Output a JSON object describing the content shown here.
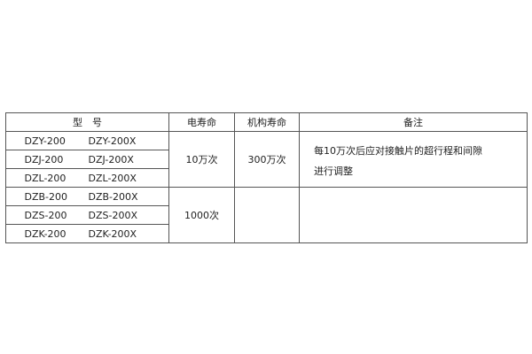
{
  "table": {
    "headers": [
      "型　号",
      "电寿命",
      "机构寿命",
      "备注"
    ],
    "rows": [
      {
        "model_a": "DZY-200",
        "model_b": "DZY-200X"
      },
      {
        "model_a": "DZJ-200",
        "model_b": "DZJ-200X"
      },
      {
        "model_a": "DZL-200",
        "model_b": "DZL-200X"
      },
      {
        "model_a": "DZB-200",
        "model_b": "DZB-200X"
      },
      {
        "model_a": "DZS-200",
        "model_b": "DZS-200X"
      },
      {
        "model_a": "DZK-200",
        "model_b": "DZK-200X"
      }
    ],
    "group1": {
      "electrical_life": "10万次",
      "mechanical_life": "300万次",
      "note_line1": "每10万次后应对接触片的超行程和间隙",
      "note_line2": "进行调整"
    },
    "group2": {
      "electrical_life": "1000次",
      "mechanical_life": "",
      "note": ""
    }
  }
}
